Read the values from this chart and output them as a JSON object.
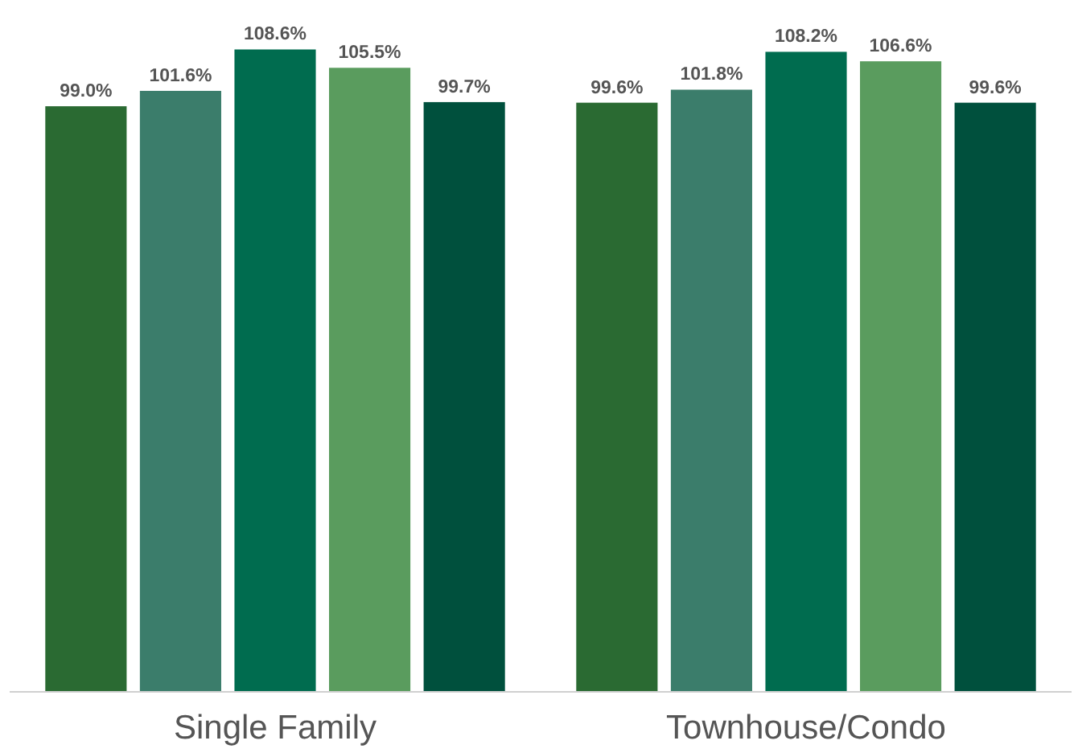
{
  "chart_data": {
    "type": "bar",
    "categories": [
      "Single Family",
      "Townhouse/Condo"
    ],
    "series": [
      {
        "color": "#2a6a32",
        "values": [
          99.0,
          99.6
        ],
        "value_labels": [
          "99.0%",
          "99.6%"
        ]
      },
      {
        "color": "#3b7d6b",
        "values": [
          101.6,
          101.8
        ],
        "value_labels": [
          "101.6%",
          "101.8%"
        ]
      },
      {
        "color": "#006c4f",
        "values": [
          108.6,
          108.2
        ],
        "value_labels": [
          "108.6%",
          "108.2%"
        ]
      },
      {
        "color": "#5a9c5e",
        "values": [
          105.5,
          106.6
        ],
        "value_labels": [
          "105.5%",
          "106.6%"
        ]
      },
      {
        "color": "#00503d",
        "values": [
          99.7,
          99.6
        ],
        "value_labels": [
          "99.7%",
          "99.6%"
        ]
      }
    ]
  }
}
